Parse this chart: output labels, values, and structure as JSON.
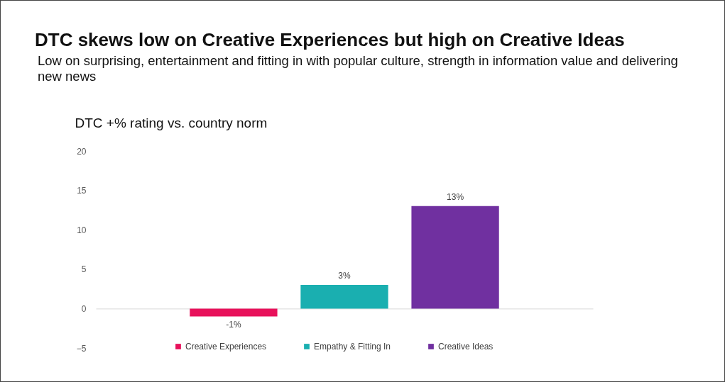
{
  "chart_data": {
    "type": "bar",
    "title": "DTC skews low on Creative  Experiences but high on Creative Ideas",
    "subtitle": "Low on surprising, entertainment and fitting in with popular culture, strength in information value and delivering new news",
    "ylabel": "DTC +% rating vs. country norm",
    "categories": [
      null
    ],
    "series": [
      {
        "name": "Creative Experiences",
        "color": "#e8115b",
        "values": [
          -1
        ],
        "value_labels": [
          "-1%"
        ]
      },
      {
        "name": "Empathy & Fitting In",
        "color": "#1aafb0",
        "values": [
          3
        ],
        "value_labels": [
          "3%"
        ]
      },
      {
        "name": "Creative Ideas",
        "color": "#7030a0",
        "values": [
          13
        ],
        "value_labels": [
          "13%"
        ]
      }
    ],
    "ylim": [
      -5,
      20
    ],
    "yticks": [
      -5,
      0,
      5,
      10,
      15,
      20
    ],
    "legend": "bottom",
    "tick_labels": "y"
  }
}
